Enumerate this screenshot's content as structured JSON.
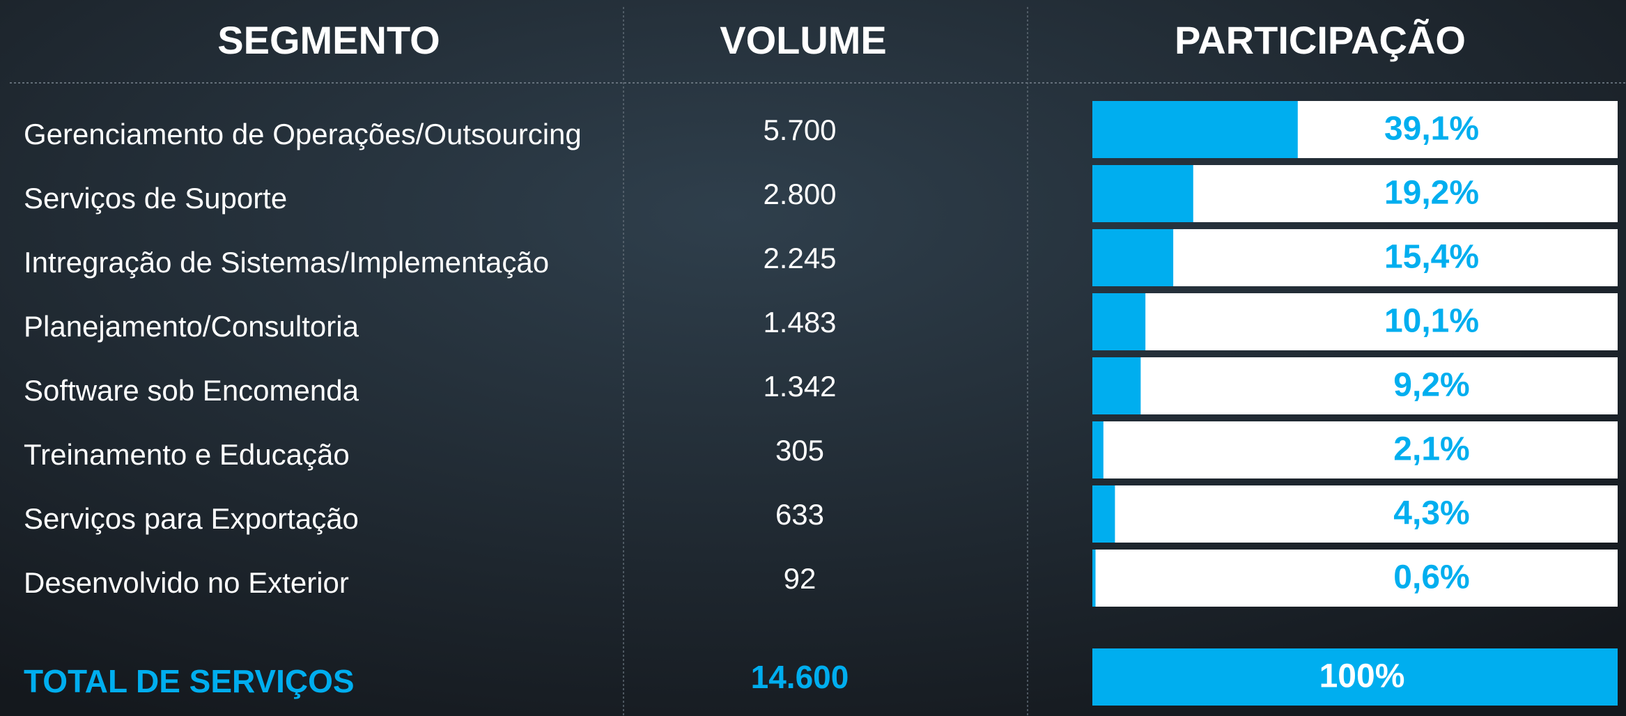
{
  "header": [
    "SEGMENTO",
    "VOLUME",
    "PARTICIPAÇÃO"
  ],
  "rows": [
    {
      "segment": "Gerenciamento de Operações/Outsourcing",
      "volume": "5.700",
      "share": 39.1,
      "share_label": "39,1%"
    },
    {
      "segment": "Serviços de Suporte",
      "volume": "2.800",
      "share": 19.2,
      "share_label": "19,2%"
    },
    {
      "segment": "Intregração de Sistemas/Implementação",
      "volume": "2.245",
      "share": 15.4,
      "share_label": "15,4%"
    },
    {
      "segment": "Planejamento/Consultoria",
      "volume": "1.483",
      "share": 10.1,
      "share_label": "10,1%"
    },
    {
      "segment": "Software sob Encomenda",
      "volume": "1.342",
      "share": 9.2,
      "share_label": "9,2%"
    },
    {
      "segment": "Treinamento e Educação",
      "volume": "305",
      "share": 2.1,
      "share_label": "2,1%"
    },
    {
      "segment": "Serviços para Exportação",
      "volume": "633",
      "share": 4.3,
      "share_label": "4,3%"
    },
    {
      "segment": "Desenvolvido no Exterior",
      "volume": "92",
      "share": 0.6,
      "share_label": "0,6%"
    }
  ],
  "total": {
    "segment": "TOTAL DE SERVIÇOS",
    "volume": "14.600",
    "share": 100,
    "share_label": "100%"
  }
}
